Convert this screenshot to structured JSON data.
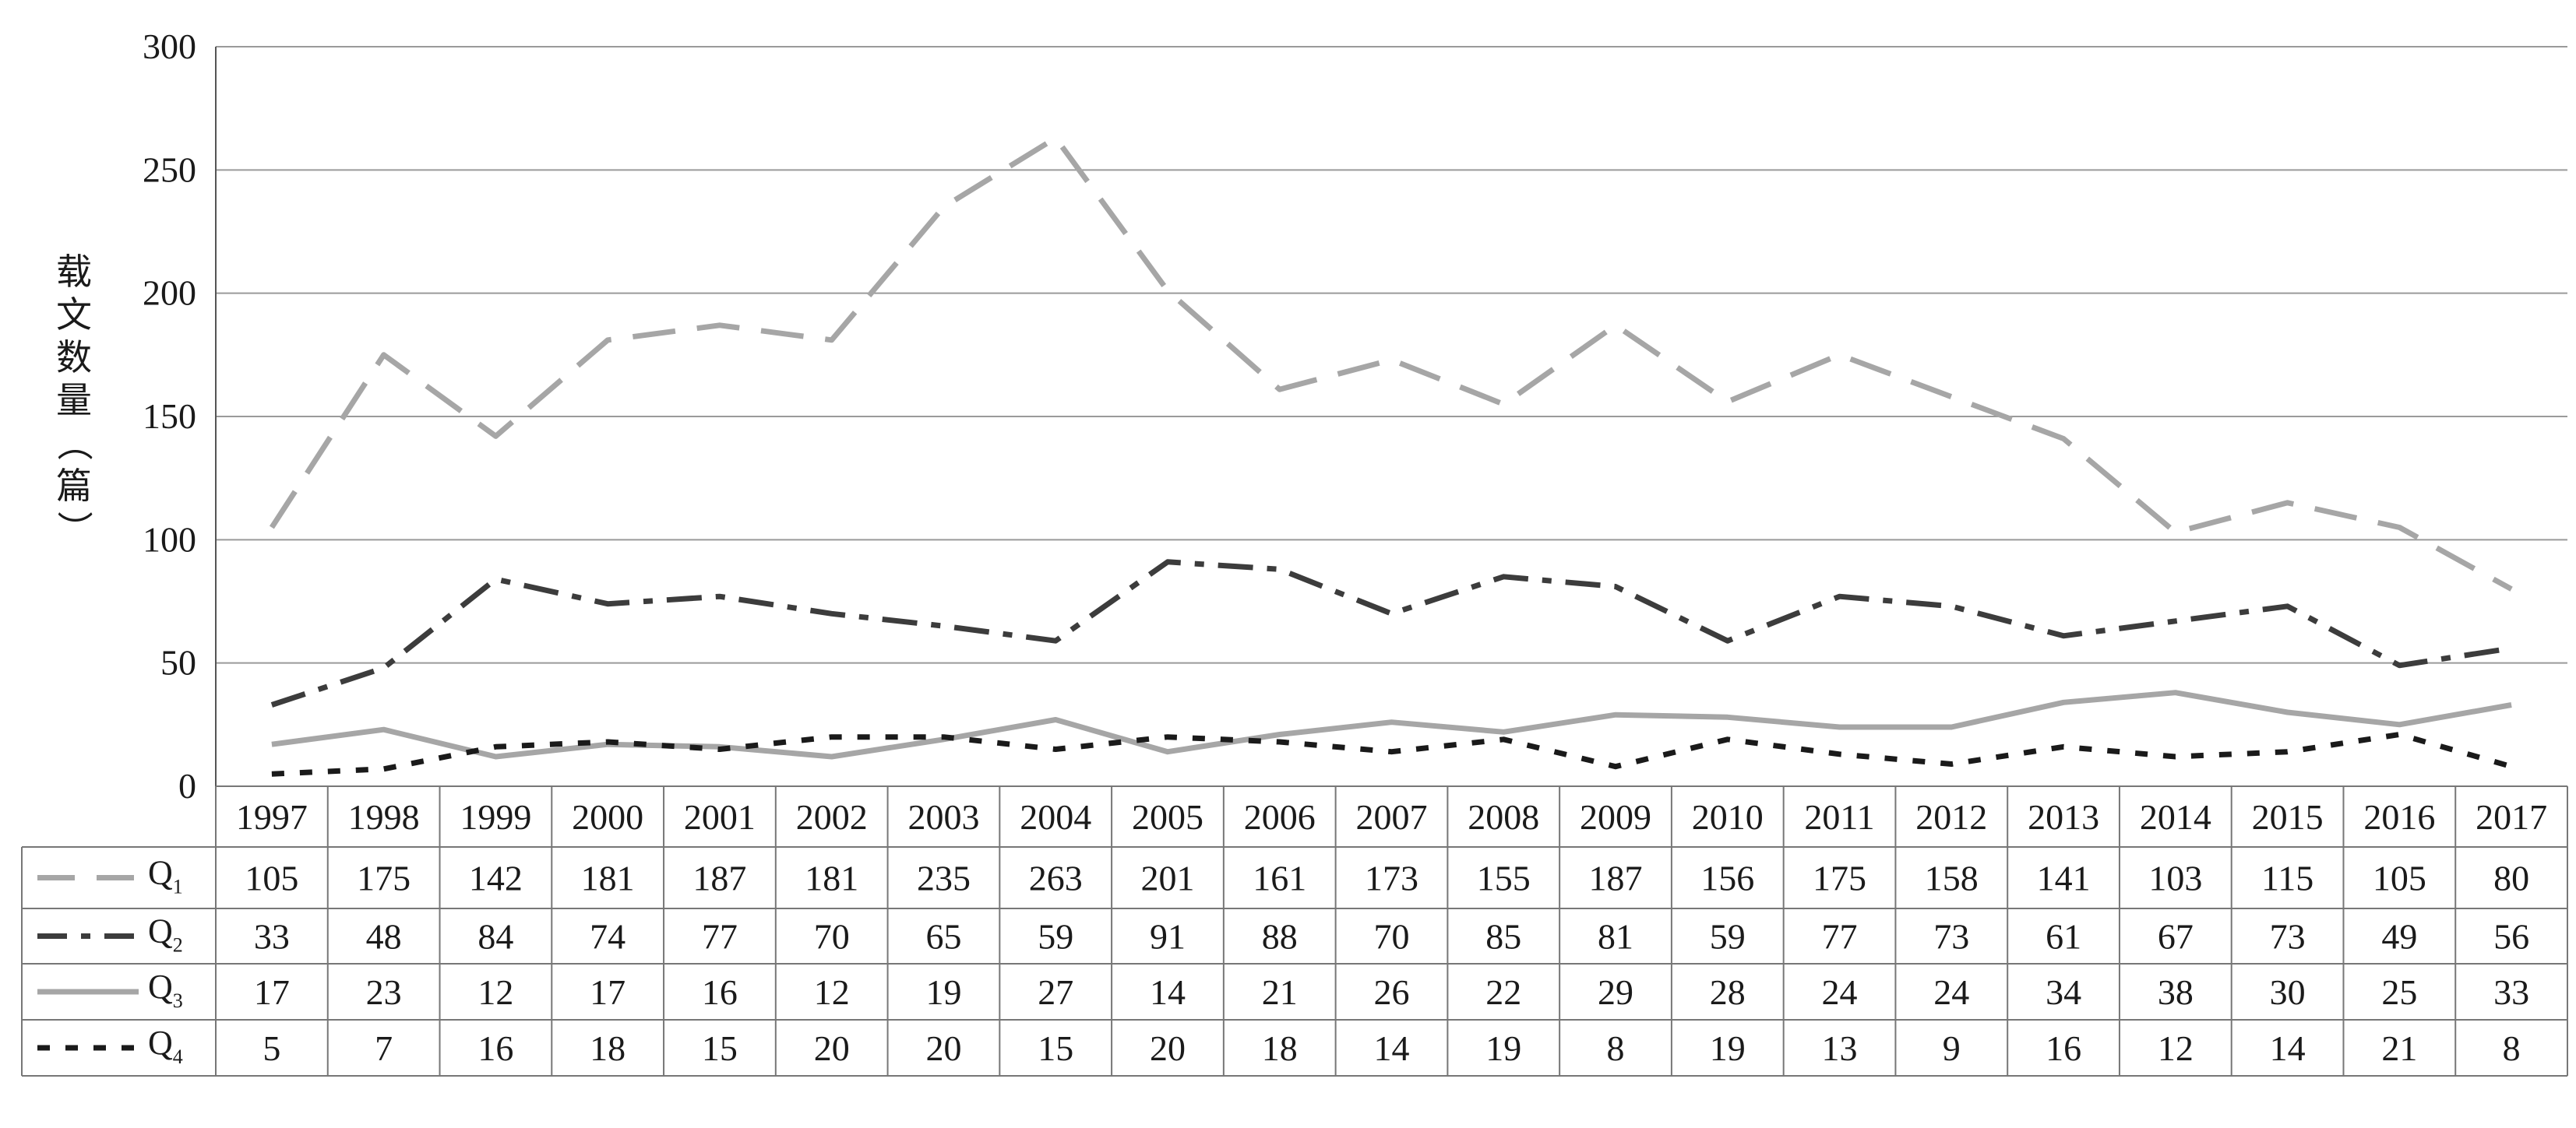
{
  "chart_data": {
    "type": "line",
    "ylabel": "载文数量（篇）",
    "xlabel": "",
    "ylim": [
      0,
      300
    ],
    "yticks": [
      0,
      50,
      100,
      150,
      200,
      250,
      300
    ],
    "grid": true,
    "legend": "data-table-below",
    "categories": [
      "1997",
      "1998",
      "1999",
      "2000",
      "2001",
      "2002",
      "2003",
      "2004",
      "2005",
      "2006",
      "2007",
      "2008",
      "2009",
      "2010",
      "2011",
      "2012",
      "2013",
      "2014",
      "2015",
      "2016",
      "2017"
    ],
    "series": [
      {
        "name": "Q",
        "sub": "1",
        "style": "long-dash",
        "color": "#a6a6a6",
        "values": [
          105,
          175,
          142,
          181,
          187,
          181,
          235,
          263,
          201,
          161,
          173,
          155,
          187,
          156,
          175,
          158,
          141,
          103,
          115,
          105,
          80
        ]
      },
      {
        "name": "Q",
        "sub": "2",
        "style": "dash-dot",
        "color": "#3c3c3c",
        "values": [
          33,
          48,
          84,
          74,
          77,
          70,
          65,
          59,
          91,
          88,
          70,
          85,
          81,
          59,
          77,
          73,
          61,
          67,
          73,
          49,
          56
        ]
      },
      {
        "name": "Q",
        "sub": "3",
        "style": "solid",
        "color": "#a6a6a6",
        "values": [
          17,
          23,
          12,
          17,
          16,
          12,
          19,
          27,
          14,
          21,
          26,
          22,
          29,
          28,
          24,
          24,
          34,
          38,
          30,
          25,
          33
        ]
      },
      {
        "name": "Q",
        "sub": "4",
        "style": "dotted",
        "color": "#1a1a1a",
        "values": [
          5,
          7,
          16,
          18,
          15,
          20,
          20,
          15,
          20,
          18,
          14,
          19,
          8,
          19,
          13,
          9,
          16,
          12,
          14,
          21,
          8
        ]
      }
    ]
  }
}
